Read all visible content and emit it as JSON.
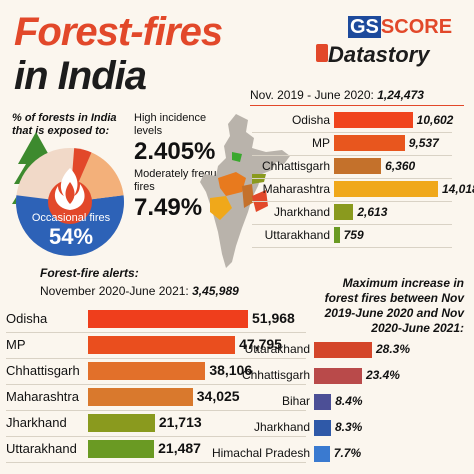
{
  "header": {
    "title_line1": "Forest-fires",
    "title_line2": "in India",
    "brand_gs": "GS",
    "brand_score": "SCORE",
    "brand_datastory": "Datastory"
  },
  "colors": {
    "accent": "#e2482a",
    "orange": "#f06a1d",
    "brown": "#c4712b",
    "yellow": "#f0a81a",
    "olive": "#8a9a1e",
    "green": "#6a9a23",
    "dark_red": "#c5392b",
    "rose": "#b94a4a",
    "navy": "#3a4a9a",
    "blue": "#2d62b7"
  },
  "icons": {
    "tree": "tree-icon",
    "fire": "fire-icon",
    "map": "india-map-icon",
    "book": "book-icon"
  },
  "pie_panel": {
    "intro": "% of forests in India that is exposed to:",
    "high_label": "High incidence levels",
    "high_value": "2.405%",
    "moderate_label": "Moderately frequent fires",
    "moderate_value": "7.49%",
    "occasional_label": "Occasional fires",
    "occasional_value": "54%"
  },
  "section1": {
    "period": "Nov. 2019 - June 2020:",
    "total": "1,24,473"
  },
  "section2": {
    "heading": "Forest-fire alerts:",
    "period": "November 2020-June 2021:",
    "total": "3,45,989"
  },
  "section3": {
    "heading": "Maximum increase in forest fires between Nov 2019-June 2020 and Nov 2020-June 2021:"
  },
  "chart_data": [
    {
      "type": "pie",
      "title": "% of forests in India that is exposed to:",
      "labels": [
        "High incidence levels",
        "Moderately frequent fires",
        "Occasional fires"
      ],
      "values": [
        2.405,
        7.49,
        54
      ],
      "value_labels": [
        "2.405%",
        "7.49%",
        "54%"
      ]
    },
    {
      "type": "bar",
      "orientation": "horizontal",
      "title": "Nov. 2019 - June 2020: 1,24,473",
      "categories": [
        "Odisha",
        "MP",
        "Chhattisgarh",
        "Maharashtra",
        "Jharkhand",
        "Uttarakhand"
      ],
      "values": [
        10602,
        9537,
        6360,
        14018,
        2613,
        759
      ],
      "value_labels": [
        "10,602",
        "9,537",
        "6,360",
        "14,018",
        "2,613",
        "759"
      ],
      "colors": [
        "#f0441d",
        "#e8561e",
        "#c4712b",
        "#f0a81a",
        "#8a9a1e",
        "#6a9a23"
      ]
    },
    {
      "type": "bar",
      "orientation": "horizontal",
      "title": "Forest-fire alerts: November 2020-June 2021: 3,45,989",
      "categories": [
        "Odisha",
        "MP",
        "Chhattisgarh",
        "Maharashtra",
        "Jharkhand",
        "Uttarakhand"
      ],
      "values": [
        51968,
        47795,
        38106,
        34025,
        21713,
        21487
      ],
      "value_labels": [
        "51,968",
        "47,795",
        "38,106",
        "34,025",
        "21,713",
        "21,487"
      ],
      "colors": [
        "#ef3e1c",
        "#ea4e1e",
        "#e2702a",
        "#d9792d",
        "#8a9a1e",
        "#6a9a23"
      ]
    },
    {
      "type": "bar",
      "orientation": "horizontal",
      "title": "Maximum increase in forest fires between Nov 2019-June 2020 and Nov 2020-June 2021:",
      "categories": [
        "Uttarakhand",
        "Chhattisgarh",
        "Bihar",
        "Jharkhand",
        "Himachal Pradesh"
      ],
      "values": [
        28.3,
        23.4,
        8.4,
        8.3,
        7.7
      ],
      "value_labels": [
        "28.3%",
        "23.4%",
        "8.4%",
        "8.3%",
        "7.7%"
      ],
      "colors": [
        "#d4462a",
        "#b94a4a",
        "#4c4f96",
        "#2f59a8",
        "#3a7ad0"
      ]
    }
  ]
}
